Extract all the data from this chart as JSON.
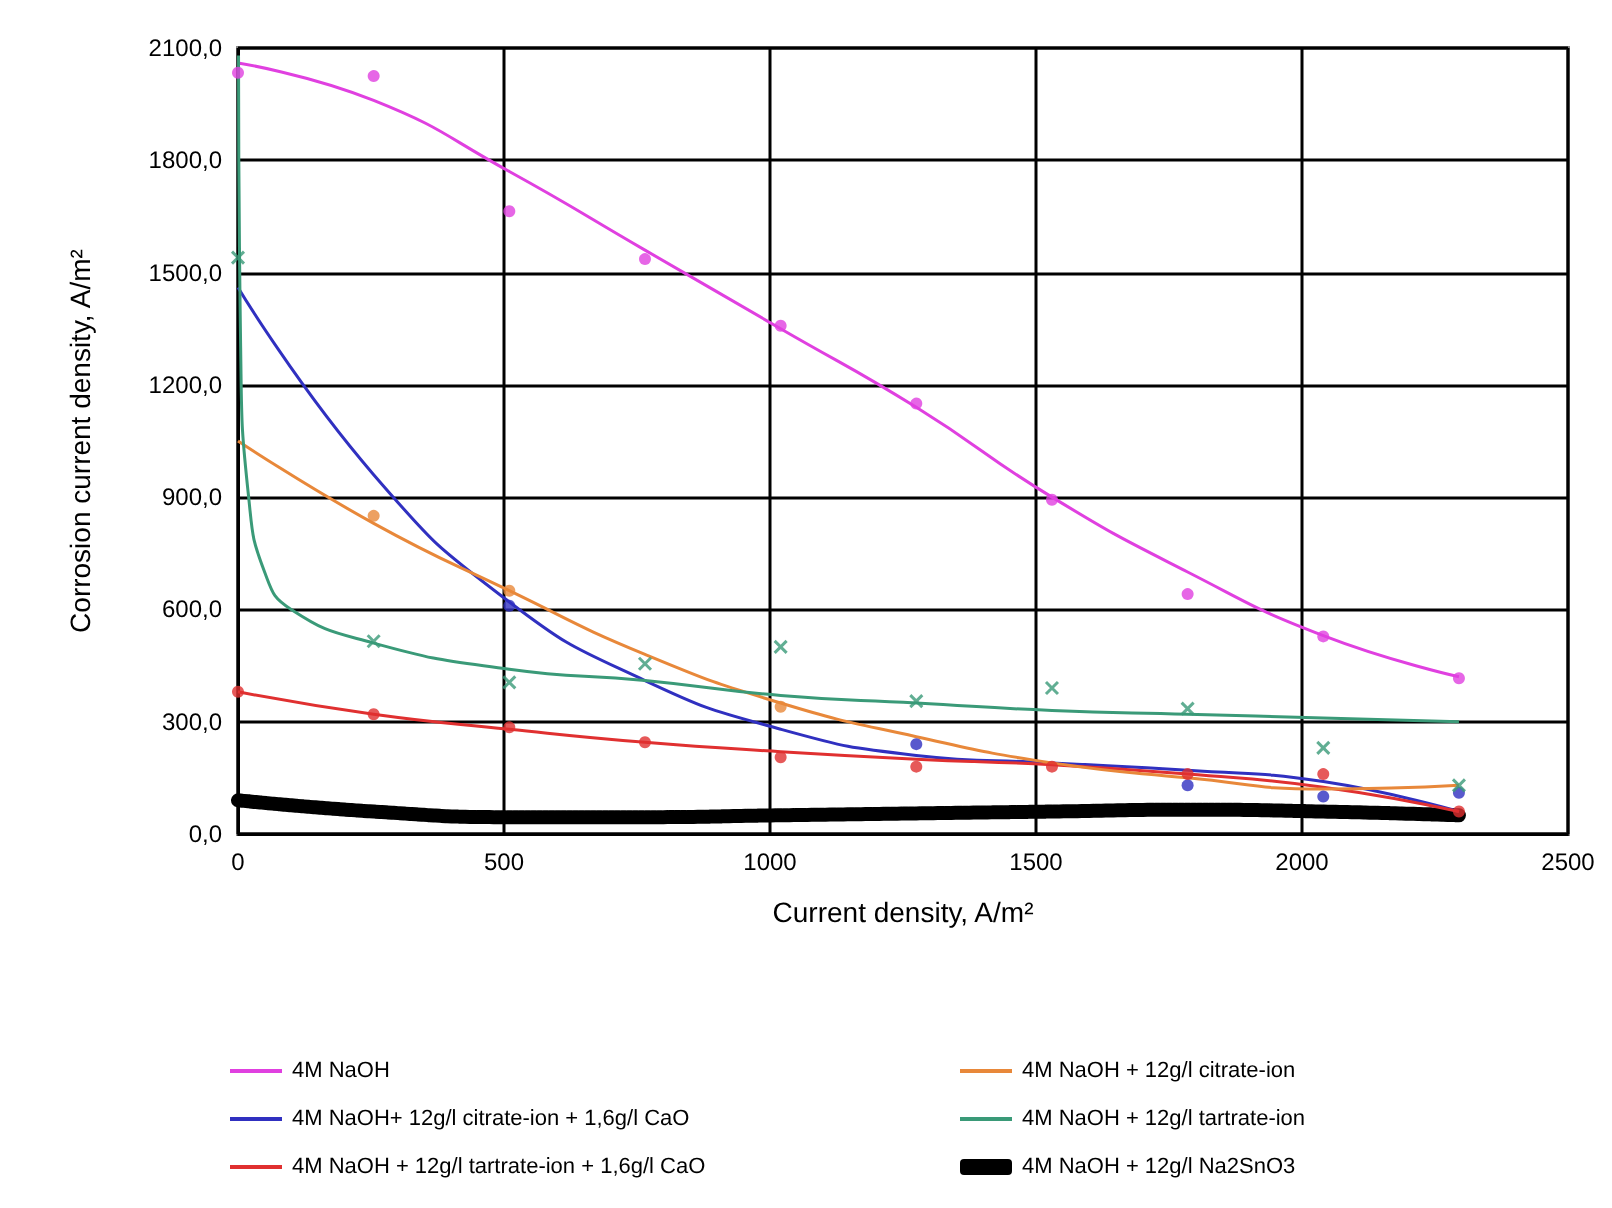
{
  "chart_data": {
    "type": "line",
    "xlabel": "Current density, A/m²",
    "ylabel": "Corrosion current density, A/m²",
    "xlim": [
      0,
      2500
    ],
    "xticks": [
      0,
      500,
      1000,
      1500,
      2000,
      2500
    ],
    "ylim": [
      0,
      2100
    ],
    "yticks": [
      {
        "value": 0,
        "label": "0,0"
      },
      {
        "value": 300,
        "label": "300,0"
      },
      {
        "value": 600,
        "label": "600,0"
      },
      {
        "value": 900,
        "label": "900,0"
      },
      {
        "value": 1200,
        "label": "1200,0"
      },
      {
        "value": 1500,
        "label": "1500,0"
      },
      {
        "value": 1800,
        "label": "1800,0"
      },
      {
        "value": 2100,
        "label": "2100,0"
      }
    ],
    "grid": true,
    "legend": "bottom",
    "marker": "none",
    "series": [
      {
        "name": "4M NaOH",
        "color": "#e040e0",
        "x": [
          0,
          255,
          510,
          765,
          1020,
          1275,
          1530,
          1785,
          2040,
          2295
        ],
        "values": [
          2060,
          1960,
          1770,
          1560,
          1350,
          1140,
          900,
          700,
          530,
          420
        ]
      },
      {
        "name": "4M NaOH+ 12g/l citrate-ion + 1,6g/l CaO",
        "color": "#3030c0",
        "x": [
          0,
          255,
          510,
          765,
          1020,
          1275,
          1530,
          1785,
          2040,
          2295
        ],
        "values": [
          1460,
          960,
          620,
          410,
          280,
          210,
          190,
          170,
          140,
          60
        ]
      },
      {
        "name": "4M NaOH + 12g/l tartrate-ion + 1,6g/l CaO",
        "color": "#e03030",
        "x": [
          0,
          255,
          510,
          765,
          1020,
          1275,
          1530,
          1785,
          2040,
          2295
        ],
        "values": [
          380,
          320,
          280,
          245,
          220,
          200,
          185,
          160,
          125,
          60
        ]
      },
      {
        "name": "4M NaOH + 12g/l citrate-ion",
        "color": "#e8883a",
        "x": [
          0,
          255,
          510,
          765,
          1020,
          1275,
          1530,
          1785,
          2040,
          2295
        ],
        "values": [
          1050,
          830,
          650,
          480,
          350,
          260,
          190,
          150,
          120,
          130
        ]
      },
      {
        "name": "4M NaOH + 12g/l tartrate-ion",
        "color": "#3a9a78",
        "x": [
          1,
          5,
          20,
          50,
          100,
          255,
          510,
          765,
          1020,
          1275,
          1530,
          1785,
          2040,
          2295
        ],
        "values": [
          2080,
          1300,
          900,
          700,
          600,
          510,
          440,
          410,
          370,
          350,
          330,
          320,
          310,
          300
        ]
      },
      {
        "name": "4M NaOH + 12g/l Na2SnO3",
        "color": "#000000",
        "line_style": "dashed",
        "x": [
          0,
          255,
          510,
          765,
          1020,
          1275,
          1530,
          1785,
          2040,
          2295
        ],
        "values": [
          90,
          60,
          45,
          45,
          50,
          55,
          60,
          65,
          60,
          50
        ]
      },
      {
        "type": "scatter",
        "marker": "circle",
        "color": "#e040e0",
        "x": [
          0,
          255,
          510,
          765,
          1020,
          1275,
          1530,
          1785,
          2040,
          2295
        ],
        "values": [
          2034,
          2025,
          1664,
          1536,
          1358,
          1150,
          893,
          641,
          528,
          416
        ]
      },
      {
        "type": "scatter",
        "marker": "circle",
        "color": "#3030c0",
        "x": [
          510,
          765,
          1275,
          1785,
          2040,
          2295
        ],
        "values": [
          610,
          null,
          240,
          130,
          100,
          110
        ]
      },
      {
        "type": "scatter",
        "marker": "circle",
        "color": "#e03030",
        "x": [
          0,
          255,
          510,
          765,
          1020,
          1275,
          1530,
          1785,
          2040,
          2295
        ],
        "values": [
          380,
          320,
          285,
          245,
          205,
          180,
          180,
          160,
          160,
          60
        ]
      },
      {
        "type": "scatter",
        "marker": "circle",
        "color": "#e8883a",
        "x": [
          255,
          510,
          1020
        ],
        "values": [
          850,
          650,
          340
        ]
      },
      {
        "type": "scatter",
        "marker": "cross",
        "color": "#3a9a78",
        "x": [
          0,
          255,
          510,
          765,
          1020,
          1275,
          1530,
          1785,
          2040,
          2295
        ],
        "values": [
          1540,
          515,
          405,
          455,
          500,
          355,
          390,
          335,
          230,
          130
        ]
      }
    ]
  }
}
